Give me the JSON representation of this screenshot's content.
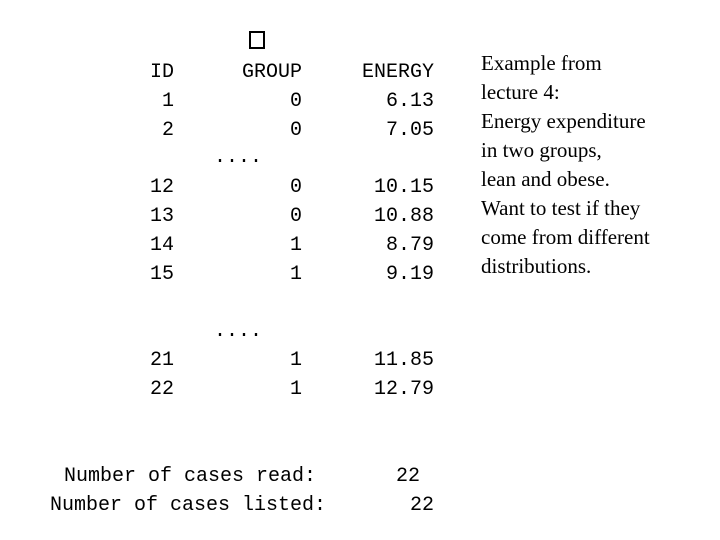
{
  "listing": {
    "headers": {
      "id": "ID",
      "group": "GROUP",
      "energy": "ENERGY"
    },
    "glyph": "�",
    "ellipsis": "....",
    "block1": [
      {
        "id": "1",
        "group": "0",
        "energy": "6.13"
      },
      {
        "id": "2",
        "group": "0",
        "energy": "7.05"
      }
    ],
    "block2": [
      {
        "id": "12",
        "group": "0",
        "energy": "10.15"
      },
      {
        "id": "13",
        "group": "0",
        "energy": "10.88"
      },
      {
        "id": "14",
        "group": "1",
        "energy": "8.79"
      },
      {
        "id": "15",
        "group": "1",
        "energy": "9.19"
      }
    ],
    "block3": [
      {
        "id": "21",
        "group": "1",
        "energy": "11.85"
      },
      {
        "id": "22",
        "group": "1",
        "energy": "12.79"
      }
    ],
    "summary": {
      "read_label": "Number of cases read:",
      "read_value": "22",
      "listed_label": "Number of cases listed:",
      "listed_value": "22"
    }
  },
  "note": {
    "lines": [
      "Example from",
      "lecture 4:",
      "Energy expenditure",
      "in two groups,",
      "lean and obese.",
      "Want to test if they",
      "come from different",
      "distributions."
    ]
  }
}
